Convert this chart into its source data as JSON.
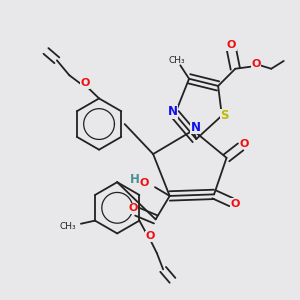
{
  "background_color": "#e8e8ea",
  "bond_color": "#222222",
  "bond_width": 1.3,
  "atom_colors": {
    "N": "#1010ee",
    "O": "#ee1010",
    "S": "#bbbb00",
    "H": "#4a9090"
  }
}
